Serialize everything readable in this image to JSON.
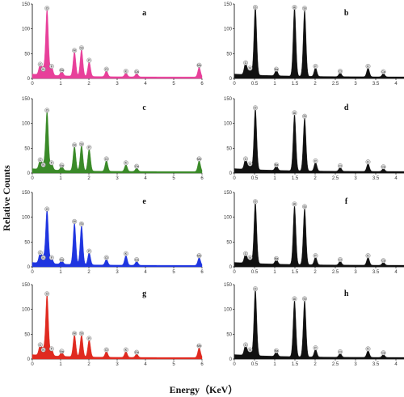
{
  "figure": {
    "ylabel": "Relative Counts",
    "xlabel": "Energy（KeV）"
  },
  "chart_data": [
    {
      "type": "area",
      "panel": "a",
      "color": "#e8409a",
      "xlim": [
        0,
        6
      ],
      "ylim": [
        0,
        150
      ],
      "xticks": [
        0,
        1,
        2,
        3,
        4,
        5,
        6
      ],
      "yticks": [
        0,
        50,
        100,
        150
      ],
      "peaks": [
        {
          "label": "C",
          "x": 0.28,
          "y": 22
        },
        {
          "label": "N",
          "x": 0.39,
          "y": 12
        },
        {
          "label": "O",
          "x": 0.52,
          "y": 135
        },
        {
          "label": "F",
          "x": 0.68,
          "y": 18
        },
        {
          "label": "Na",
          "x": 1.04,
          "y": 10
        },
        {
          "label": "Al",
          "x": 1.49,
          "y": 50
        },
        {
          "label": "Si",
          "x": 1.74,
          "y": 55
        },
        {
          "label": "P",
          "x": 2.01,
          "y": 30
        },
        {
          "label": "Cl",
          "x": 2.62,
          "y": 12
        },
        {
          "label": "K",
          "x": 3.31,
          "y": 8
        },
        {
          "label": "Ca",
          "x": 3.69,
          "y": 7
        },
        {
          "label": "Mn",
          "x": 5.9,
          "y": 20
        }
      ]
    },
    {
      "type": "area",
      "panel": "b",
      "color": "#111111",
      "xlim": [
        0,
        4.2
      ],
      "ylim": [
        0,
        150
      ],
      "xticks": [
        0,
        0.5,
        1,
        1.5,
        2,
        2.5,
        3,
        3.5,
        4
      ],
      "yticks": [
        0,
        50,
        100,
        150
      ],
      "peaks": [
        {
          "label": "C",
          "x": 0.28,
          "y": 25
        },
        {
          "label": "N",
          "x": 0.39,
          "y": 14
        },
        {
          "label": "O",
          "x": 0.52,
          "y": 140
        },
        {
          "label": "Na",
          "x": 1.04,
          "y": 12
        },
        {
          "label": "Al",
          "x": 1.49,
          "y": 140
        },
        {
          "label": "Si",
          "x": 1.74,
          "y": 135
        },
        {
          "label": "P",
          "x": 2.01,
          "y": 18
        },
        {
          "label": "Cl",
          "x": 2.62,
          "y": 8
        },
        {
          "label": "K",
          "x": 3.31,
          "y": 18
        },
        {
          "label": "Ca",
          "x": 3.69,
          "y": 7
        }
      ]
    },
    {
      "type": "area",
      "panel": "c",
      "color": "#3a8a28",
      "xlim": [
        0,
        6
      ],
      "ylim": [
        0,
        150
      ],
      "xticks": [
        0,
        1,
        2,
        3,
        4,
        5,
        6
      ],
      "yticks": [
        0,
        50,
        100,
        150
      ],
      "peaks": [
        {
          "label": "C",
          "x": 0.28,
          "y": 20
        },
        {
          "label": "N",
          "x": 0.39,
          "y": 10
        },
        {
          "label": "O",
          "x": 0.52,
          "y": 120
        },
        {
          "label": "F",
          "x": 0.68,
          "y": 14
        },
        {
          "label": "Na",
          "x": 1.04,
          "y": 9
        },
        {
          "label": "Al",
          "x": 1.49,
          "y": 50
        },
        {
          "label": "Si",
          "x": 1.74,
          "y": 52
        },
        {
          "label": "P",
          "x": 2.01,
          "y": 45
        },
        {
          "label": "Cl",
          "x": 2.62,
          "y": 22
        },
        {
          "label": "K",
          "x": 3.31,
          "y": 14
        },
        {
          "label": "Ca",
          "x": 3.69,
          "y": 7
        },
        {
          "label": "Mn",
          "x": 5.9,
          "y": 22
        }
      ]
    },
    {
      "type": "area",
      "panel": "d",
      "color": "#111111",
      "xlim": [
        0,
        4.2
      ],
      "ylim": [
        0,
        150
      ],
      "xticks": [
        0,
        0.5,
        1,
        1.5,
        2,
        2.5,
        3,
        3.5,
        4
      ],
      "yticks": [
        0,
        50,
        100,
        150
      ],
      "peaks": [
        {
          "label": "C",
          "x": 0.28,
          "y": 22
        },
        {
          "label": "N",
          "x": 0.39,
          "y": 12
        },
        {
          "label": "O",
          "x": 0.52,
          "y": 125
        },
        {
          "label": "Na",
          "x": 1.04,
          "y": 10
        },
        {
          "label": "Al",
          "x": 1.49,
          "y": 115
        },
        {
          "label": "Si",
          "x": 1.74,
          "y": 108
        },
        {
          "label": "P",
          "x": 2.01,
          "y": 18
        },
        {
          "label": "Cl",
          "x": 2.62,
          "y": 8
        },
        {
          "label": "K",
          "x": 3.31,
          "y": 16
        },
        {
          "label": "Ca",
          "x": 3.69,
          "y": 6
        }
      ]
    },
    {
      "type": "area",
      "panel": "e",
      "color": "#1f35e0",
      "xlim": [
        0,
        6
      ],
      "ylim": [
        0,
        150
      ],
      "xticks": [
        0,
        1,
        2,
        3,
        4,
        5,
        6
      ],
      "yticks": [
        0,
        50,
        100,
        150
      ],
      "peaks": [
        {
          "label": "C",
          "x": 0.28,
          "y": 22
        },
        {
          "label": "N",
          "x": 0.39,
          "y": 12
        },
        {
          "label": "O",
          "x": 0.52,
          "y": 110
        },
        {
          "label": "F",
          "x": 0.68,
          "y": 12
        },
        {
          "label": "Na",
          "x": 1.04,
          "y": 8
        },
        {
          "label": "Al",
          "x": 1.49,
          "y": 85
        },
        {
          "label": "Si",
          "x": 1.74,
          "y": 80
        },
        {
          "label": "P",
          "x": 2.01,
          "y": 25
        },
        {
          "label": "Cl",
          "x": 2.62,
          "y": 12
        },
        {
          "label": "K",
          "x": 3.31,
          "y": 20
        },
        {
          "label": "Ca",
          "x": 3.69,
          "y": 8
        },
        {
          "label": "Mn",
          "x": 5.9,
          "y": 16
        }
      ]
    },
    {
      "type": "area",
      "panel": "f",
      "color": "#111111",
      "xlim": [
        0,
        4.2
      ],
      "ylim": [
        0,
        150
      ],
      "xticks": [
        0,
        0.5,
        1,
        1.5,
        2,
        2.5,
        3,
        3.5,
        4
      ],
      "yticks": [
        0,
        50,
        100,
        150
      ],
      "peaks": [
        {
          "label": "C",
          "x": 0.28,
          "y": 20
        },
        {
          "label": "N",
          "x": 0.39,
          "y": 12
        },
        {
          "label": "O",
          "x": 0.52,
          "y": 125
        },
        {
          "label": "Na",
          "x": 1.04,
          "y": 10
        },
        {
          "label": "Al",
          "x": 1.49,
          "y": 120
        },
        {
          "label": "Si",
          "x": 1.74,
          "y": 115
        },
        {
          "label": "P",
          "x": 2.01,
          "y": 16
        },
        {
          "label": "Cl",
          "x": 2.62,
          "y": 8
        },
        {
          "label": "K",
          "x": 3.31,
          "y": 16
        },
        {
          "label": "Ca",
          "x": 3.69,
          "y": 6
        }
      ]
    },
    {
      "type": "area",
      "panel": "g",
      "color": "#e02a20",
      "xlim": [
        0,
        6
      ],
      "ylim": [
        0,
        150
      ],
      "xticks": [
        0,
        1,
        2,
        3,
        4,
        5,
        6
      ],
      "yticks": [
        0,
        50,
        100,
        150
      ],
      "peaks": [
        {
          "label": "C",
          "x": 0.28,
          "y": 22
        },
        {
          "label": "N",
          "x": 0.39,
          "y": 12
        },
        {
          "label": "O",
          "x": 0.52,
          "y": 125
        },
        {
          "label": "F",
          "x": 0.68,
          "y": 14
        },
        {
          "label": "Na",
          "x": 1.04,
          "y": 9
        },
        {
          "label": "Al",
          "x": 1.49,
          "y": 45
        },
        {
          "label": "Si",
          "x": 1.74,
          "y": 45
        },
        {
          "label": "P",
          "x": 2.01,
          "y": 35
        },
        {
          "label": "Cl",
          "x": 2.62,
          "y": 12
        },
        {
          "label": "K",
          "x": 3.31,
          "y": 12
        },
        {
          "label": "Ca",
          "x": 3.69,
          "y": 7
        },
        {
          "label": "Mn",
          "x": 5.9,
          "y": 20
        }
      ]
    },
    {
      "type": "area",
      "panel": "h",
      "color": "#111111",
      "xlim": [
        0,
        4.2
      ],
      "ylim": [
        0,
        150
      ],
      "xticks": [
        0,
        0.5,
        1,
        1.5,
        2,
        2.5,
        3,
        3.5,
        4
      ],
      "yticks": [
        0,
        50,
        100,
        150
      ],
      "peaks": [
        {
          "label": "C",
          "x": 0.28,
          "y": 22
        },
        {
          "label": "N",
          "x": 0.39,
          "y": 12
        },
        {
          "label": "O",
          "x": 0.52,
          "y": 135
        },
        {
          "label": "Na",
          "x": 1.04,
          "y": 10
        },
        {
          "label": "Al",
          "x": 1.49,
          "y": 115
        },
        {
          "label": "Si",
          "x": 1.74,
          "y": 115
        },
        {
          "label": "P",
          "x": 2.01,
          "y": 16
        },
        {
          "label": "Cl",
          "x": 2.62,
          "y": 8
        },
        {
          "label": "K",
          "x": 3.31,
          "y": 14
        },
        {
          "label": "Ca",
          "x": 3.69,
          "y": 6
        }
      ]
    }
  ]
}
